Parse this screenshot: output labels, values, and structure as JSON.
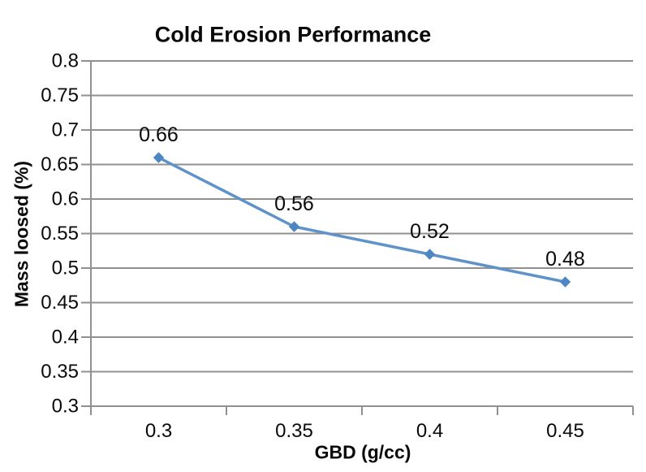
{
  "chart_data": {
    "type": "line",
    "title": "Cold Erosion Performance",
    "xlabel": "GBD (g/cc)",
    "ylabel": "Mass loosed (%)",
    "categories": [
      "0.3",
      "0.35",
      "0.4",
      "0.45"
    ],
    "series": [
      {
        "name": "Mass loosed",
        "values": [
          0.66,
          0.56,
          0.52,
          0.48
        ],
        "data_labels": [
          "0.66",
          "0.56",
          "0.52",
          "0.48"
        ]
      }
    ],
    "ylim": [
      0.3,
      0.8
    ],
    "ytick_step": 0.05,
    "ytick_labels": [
      "0.8",
      "0.75",
      "0.7",
      "0.65",
      "0.6",
      "0.55",
      "0.5",
      "0.45",
      "0.4",
      "0.35",
      "0.3"
    ],
    "grid": true,
    "legend": false,
    "marker": "diamond",
    "colors": {
      "line": "#5E92C8",
      "marker": "#4E86C2",
      "grid": "#909090",
      "axis": "#909090",
      "text": "#0a0a0a",
      "background": "#ffffff"
    }
  }
}
